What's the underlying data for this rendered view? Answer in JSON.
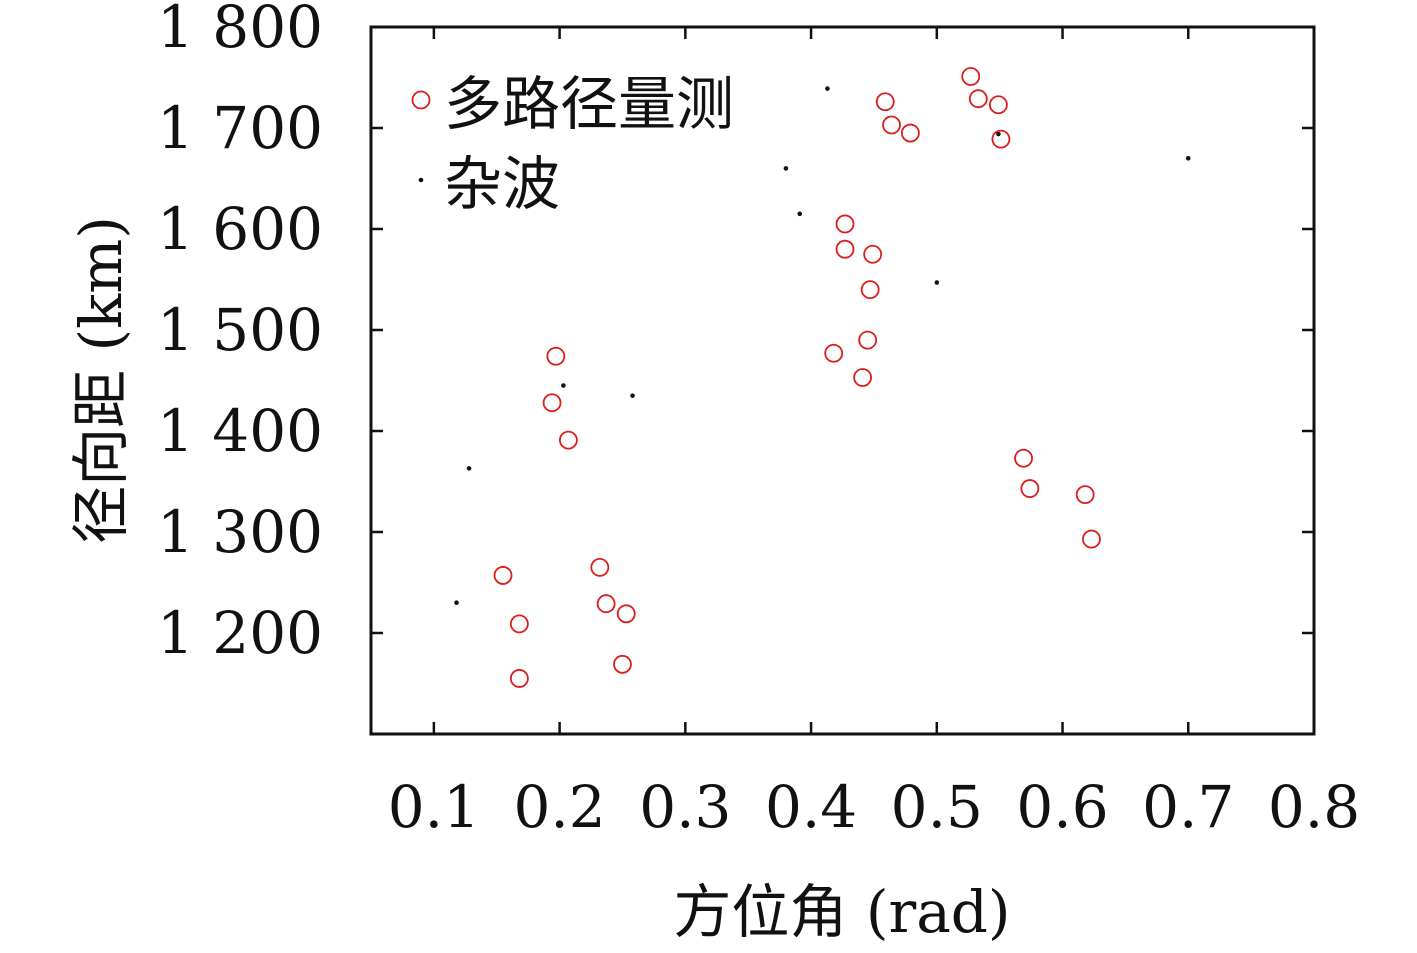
{
  "chart_data": {
    "type": "scatter",
    "xlabel": "方位角 (rad)",
    "ylabel": "径向距 (km)",
    "xlim": [
      0.05,
      0.8
    ],
    "ylim": [
      1100,
      1800
    ],
    "xticks": [
      0.1,
      0.2,
      0.3,
      0.4,
      0.5,
      0.6,
      0.7,
      0.8
    ],
    "yticks": [
      1200,
      1300,
      1400,
      1500,
      1600,
      1700,
      1800
    ],
    "xtick_labels": [
      "0.1",
      "0.2",
      "0.3",
      "0.4",
      "0.5",
      "0.6",
      "0.7",
      "0.8"
    ],
    "ytick_labels": [
      "1 200",
      "1 300",
      "1 400",
      "1 500",
      "1 600",
      "1 700",
      "1 800"
    ],
    "grid": false,
    "legend_position": "top-left",
    "series": [
      {
        "name": "多路径量测",
        "marker": "open-circle",
        "color": "#dd1c1c",
        "points": [
          [
            0.155,
            1257
          ],
          [
            0.168,
            1209
          ],
          [
            0.168,
            1155
          ],
          [
            0.232,
            1265
          ],
          [
            0.237,
            1229
          ],
          [
            0.253,
            1219
          ],
          [
            0.25,
            1169
          ],
          [
            0.194,
            1428
          ],
          [
            0.197,
            1474
          ],
          [
            0.207,
            1391
          ],
          [
            0.418,
            1477
          ],
          [
            0.441,
            1453
          ],
          [
            0.445,
            1490
          ],
          [
            0.447,
            1540
          ],
          [
            0.449,
            1575
          ],
          [
            0.427,
            1605
          ],
          [
            0.427,
            1580
          ],
          [
            0.459,
            1726
          ],
          [
            0.464,
            1703
          ],
          [
            0.479,
            1695
          ],
          [
            0.527,
            1751
          ],
          [
            0.533,
            1729
          ],
          [
            0.549,
            1723
          ],
          [
            0.551,
            1689
          ],
          [
            0.569,
            1373
          ],
          [
            0.574,
            1343
          ],
          [
            0.618,
            1337
          ],
          [
            0.623,
            1293
          ]
        ]
      },
      {
        "name": "杂波",
        "marker": "dot",
        "color": "#111111",
        "points": [
          [
            0.118,
            1230
          ],
          [
            0.128,
            1363
          ],
          [
            0.203,
            1445
          ],
          [
            0.258,
            1435
          ],
          [
            0.38,
            1660
          ],
          [
            0.391,
            1615
          ],
          [
            0.413,
            1739
          ],
          [
            0.5,
            1547
          ],
          [
            0.549,
            1694
          ],
          [
            0.7,
            1670
          ]
        ]
      }
    ]
  }
}
